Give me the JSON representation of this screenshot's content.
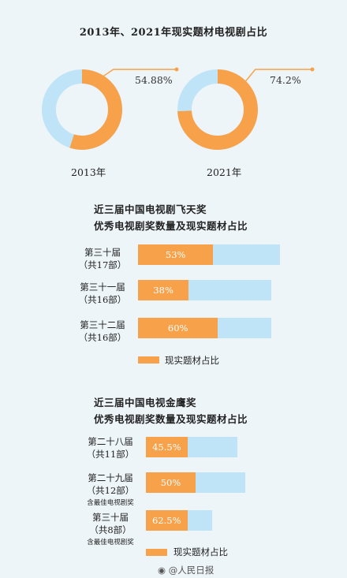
{
  "colors": {
    "orange": "#f7a24b",
    "blue": "#bfe4f7",
    "bg": "#eef5f9"
  },
  "title": "2013年、2021年现实题材电视剧占比",
  "donuts": [
    {
      "year": "2013年",
      "pct_label": "54.88%",
      "value": 54.88
    },
    {
      "year": "2021年",
      "pct_label": "74.2%",
      "value": 74.2
    }
  ],
  "feitian": {
    "title_line1": "近三届中国电视剧飞天奖",
    "title_line2": "优秀电视剧奖数量及现实题材占比",
    "legend": "现实题材占比",
    "rows": [
      {
        "label1": "第三十届",
        "label2": "（共17部）",
        "value_label": "53%",
        "value": 53,
        "total": 17
      },
      {
        "label1": "第三十一届",
        "label2": "（共16部）",
        "value_label": "38%",
        "value": 38,
        "total": 16
      },
      {
        "label1": "第三十二届",
        "label2": "（共16部）",
        "value_label": "60%",
        "value": 60,
        "total": 16
      }
    ]
  },
  "jinying": {
    "title_line1": "近三届中国电视金鹰奖",
    "title_line2": "优秀电视剧奖数量及现实题材占比",
    "legend": "现实题材占比",
    "rows": [
      {
        "label1": "第二十八届",
        "label2": "（共11部）",
        "note": "",
        "value_label": "45.5%",
        "value": 45.5,
        "total": 11
      },
      {
        "label1": "第二十九届",
        "label2": "（共12部）",
        "note": "含最佳电视剧奖",
        "value_label": "50%",
        "value": 50,
        "total": 12
      },
      {
        "label1": "第三十届",
        "label2": "（共8部）",
        "note": "含最佳电视剧奖",
        "value_label": "62.5%",
        "value": 62.5,
        "total": 8
      }
    ]
  },
  "watermark": "@人民日报",
  "chart_data": [
    {
      "type": "pie",
      "title": "2013年、2021年现实题材电视剧占比",
      "categories": [
        "2013年"
      ],
      "values": [
        54.88
      ]
    },
    {
      "type": "pie",
      "categories": [
        "2021年"
      ],
      "values": [
        74.2
      ]
    },
    {
      "type": "bar",
      "title": "近三届中国电视剧飞天奖 优秀电视剧奖数量及现实题材占比",
      "categories": [
        "第三十届（共17部）",
        "第三十一届（共16部）",
        "第三十二届（共16部）"
      ],
      "series": [
        {
          "name": "现实题材占比",
          "values": [
            53,
            38,
            60
          ]
        }
      ],
      "totals": [
        17,
        16,
        16
      ]
    },
    {
      "type": "bar",
      "title": "近三届中国电视金鹰奖 优秀电视剧奖数量及现实题材占比",
      "categories": [
        "第二十八届（共11部）",
        "第二十九届（共12部）",
        "第三十届（共8部）"
      ],
      "series": [
        {
          "name": "现实题材占比",
          "values": [
            45.5,
            50,
            62.5
          ]
        }
      ],
      "totals": [
        11,
        12,
        8
      ]
    }
  ]
}
